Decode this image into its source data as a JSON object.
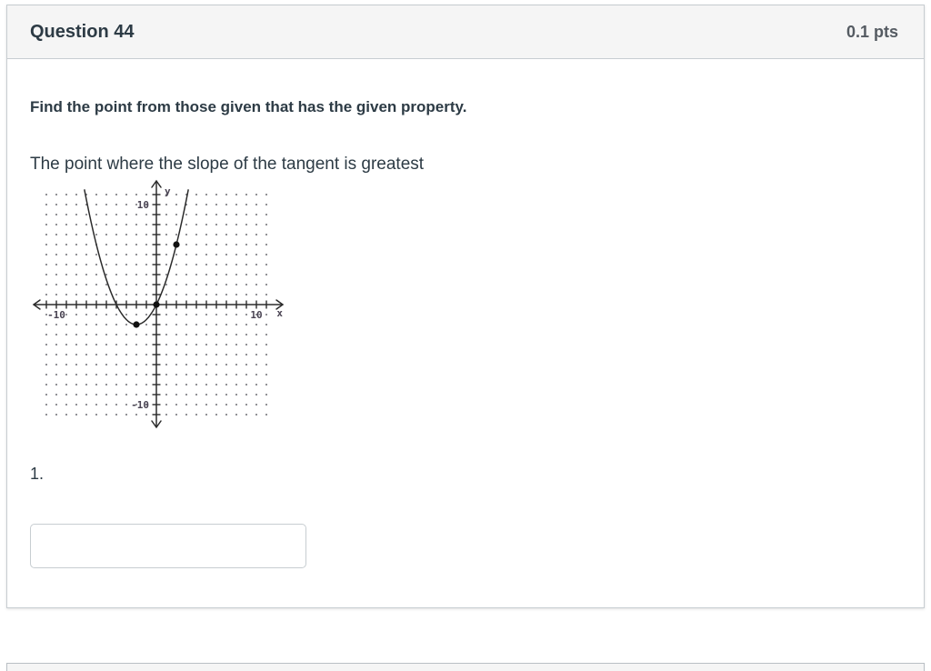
{
  "question": {
    "header": {
      "title": "Question 44",
      "points": "0.1 pts"
    },
    "body": {
      "prompt_bold": "Find the point from those given that has the given property.",
      "prompt": "The point where the slope of the tangent is greatest",
      "answer_label": "1.",
      "answer_value": ""
    }
  },
  "chart_data": {
    "type": "line",
    "title": "",
    "xlabel": "x",
    "ylabel": "y",
    "xlim": [
      -12.5,
      12.5
    ],
    "ylim": [
      -12.5,
      12.5
    ],
    "tick_step": 1,
    "tick_range": 11,
    "grid": "dotted",
    "x_tick_labels": [
      {
        "value": -10,
        "label": "-10"
      },
      {
        "value": 10,
        "label": "10"
      }
    ],
    "y_tick_labels": [
      {
        "value": 10,
        "label": "10"
      },
      {
        "value": -10,
        "label": "-10"
      }
    ],
    "curve": {
      "equation": "y = 0.5*(x+2)^2 - 2",
      "a": 0.5,
      "vertex": [
        -2,
        -2
      ],
      "x_range": [
        -7.2,
        3.25
      ]
    },
    "marked_points": [
      [
        -2,
        -2
      ],
      [
        0,
        0
      ],
      [
        2,
        6
      ]
    ],
    "ink_color": "#2b2b2b",
    "grid_dot_color": "#6f6f74",
    "label_color": "#4a4453"
  }
}
